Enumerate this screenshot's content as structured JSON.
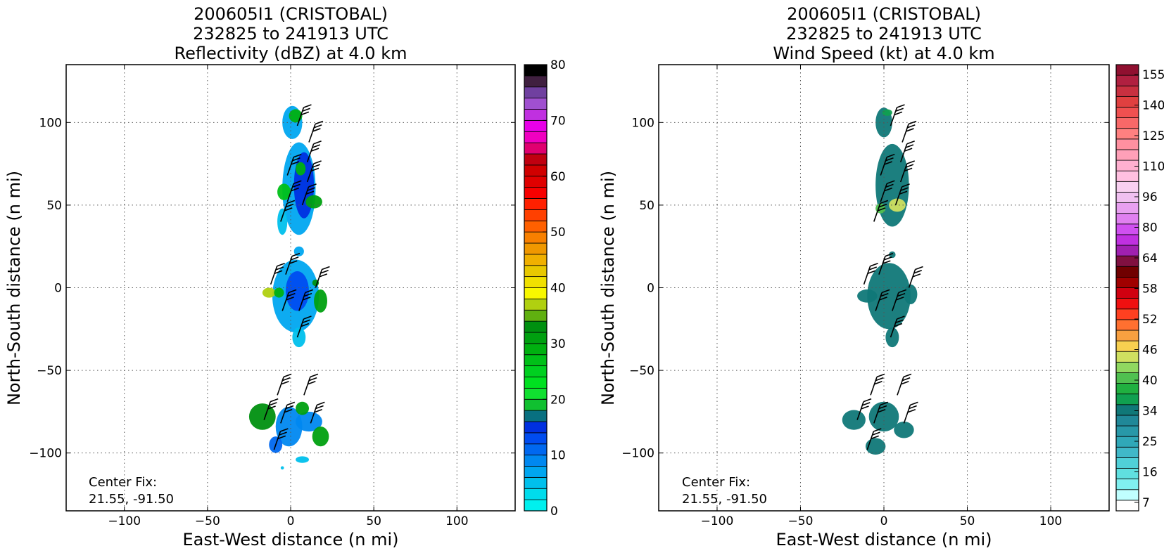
{
  "chart_data": [
    {
      "type": "heatmap",
      "title_lines": [
        "200605I1 (CRISTOBAL)",
        "232825 to 241913 UTC",
        "Reflectivity (dBZ) at 4.0 km"
      ],
      "xlabel": "East-West distance (n mi)",
      "ylabel": "North-South distance (n mi)",
      "xlim": [
        -135,
        135
      ],
      "ylim": [
        -135,
        135
      ],
      "xticks": [
        "−100",
        "−50",
        "0",
        "50",
        "100"
      ],
      "yticks": [
        "100",
        "50",
        "0",
        "−50",
        "−100"
      ],
      "grid": true,
      "annotation_lines": [
        "Center Fix:",
        "21.55, -91.50"
      ],
      "colorbar": {
        "ticks": [
          "80",
          "70",
          "60",
          "50",
          "40",
          "30",
          "20",
          "10",
          "0"
        ],
        "tick_values": [
          80,
          70,
          60,
          50,
          40,
          30,
          20,
          10,
          0
        ],
        "range": [
          0,
          80
        ],
        "colors": [
          "#00f0ee",
          "#00dcec",
          "#00c0ec",
          "#00a6f0",
          "#0088f0",
          "#0068f0",
          "#004cf0",
          "#0030e0",
          "#087080",
          "#10c030",
          "#10e030",
          "#00e020",
          "#00d020",
          "#00c018",
          "#00b010",
          "#00a010",
          "#009010",
          "#60b010",
          "#b0d010",
          "#f8f800",
          "#f0e000",
          "#e8c800",
          "#f0b000",
          "#f09800",
          "#f88000",
          "#ff6000",
          "#ff4000",
          "#ff2000",
          "#f80000",
          "#e00000",
          "#d00000",
          "#c00010",
          "#e00070",
          "#f000c0",
          "#e800e8",
          "#c030e0",
          "#a050d0",
          "#7040a0",
          "#402040",
          "#000000"
        ]
      },
      "echo_cells": [
        {
          "x": 1,
          "y": 100,
          "rx": 6,
          "ry": 10,
          "level": 3
        },
        {
          "x": 3,
          "y": 104,
          "rx": 4,
          "ry": 4,
          "level": 14
        },
        {
          "x": 5,
          "y": 60,
          "rx": 10,
          "ry": 28,
          "level": 3
        },
        {
          "x": 8,
          "y": 62,
          "rx": 6,
          "ry": 20,
          "level": 7
        },
        {
          "x": 14,
          "y": 52,
          "rx": 5,
          "ry": 4,
          "level": 15
        },
        {
          "x": -4,
          "y": 58,
          "rx": 4,
          "ry": 5,
          "level": 13
        },
        {
          "x": 6,
          "y": 72,
          "rx": 3,
          "ry": 4,
          "level": 14
        },
        {
          "x": -5,
          "y": 40,
          "rx": 3,
          "ry": 8,
          "level": 2
        },
        {
          "x": 5,
          "y": 22,
          "rx": 3,
          "ry": 3,
          "level": 3
        },
        {
          "x": 3,
          "y": -5,
          "rx": 14,
          "ry": 22,
          "level": 3
        },
        {
          "x": 4,
          "y": -2,
          "rx": 7,
          "ry": 12,
          "level": 6
        },
        {
          "x": -13,
          "y": -3,
          "rx": 4,
          "ry": 3,
          "level": 18
        },
        {
          "x": -7,
          "y": -3,
          "rx": 3,
          "ry": 3,
          "level": 14
        },
        {
          "x": 18,
          "y": -8,
          "rx": 4,
          "ry": 7,
          "level": 15
        },
        {
          "x": 15,
          "y": 3,
          "rx": 2,
          "ry": 2,
          "level": 16
        },
        {
          "x": 5,
          "y": -30,
          "rx": 4,
          "ry": 6,
          "level": 2
        },
        {
          "x": -1,
          "y": -84,
          "rx": 8,
          "ry": 12,
          "level": 4
        },
        {
          "x": -17,
          "y": -78,
          "rx": 8,
          "ry": 8,
          "level": 16
        },
        {
          "x": 11,
          "y": -81,
          "rx": 8,
          "ry": 6,
          "level": 4
        },
        {
          "x": 18,
          "y": -90,
          "rx": 5,
          "ry": 6,
          "level": 15
        },
        {
          "x": -9,
          "y": -95,
          "rx": 4,
          "ry": 5,
          "level": 5
        },
        {
          "x": 7,
          "y": -104,
          "rx": 4,
          "ry": 2,
          "level": 2
        },
        {
          "x": -5,
          "y": -109,
          "rx": 1,
          "ry": 1,
          "level": 2
        },
        {
          "x": 7,
          "y": -73,
          "rx": 4,
          "ry": 4,
          "level": 15
        }
      ]
    },
    {
      "type": "heatmap",
      "title_lines": [
        "200605I1 (CRISTOBAL)",
        "232825 to 241913 UTC",
        "Wind Speed (kt) at 4.0 km"
      ],
      "xlabel": "East-West distance (n mi)",
      "ylabel": "North-South distance (n mi)",
      "xlim": [
        -135,
        135
      ],
      "ylim": [
        -135,
        135
      ],
      "xticks": [
        "−100",
        "−50",
        "0",
        "50",
        "100"
      ],
      "yticks": [
        "100",
        "50",
        "0",
        "−50",
        "−100"
      ],
      "grid": true,
      "annotation_lines": [
        "Center Fix:",
        "21.55, -91.50"
      ],
      "colorbar": {
        "ticks": [
          "155",
          "140",
          "125",
          "110",
          "96",
          "80",
          "64",
          "58",
          "52",
          "46",
          "40",
          "34",
          "25",
          "16",
          "7"
        ],
        "colors": [
          "#ffffff",
          "#c0ffff",
          "#80f0f0",
          "#60e0e0",
          "#50d0d8",
          "#40b8c8",
          "#30a8b8",
          "#2898a8",
          "#208898",
          "#107878",
          "#10a050",
          "#20b040",
          "#50c050",
          "#90d860",
          "#d0e060",
          "#f8d050",
          "#f8a040",
          "#ff7030",
          "#ff4020",
          "#f01010",
          "#d00010",
          "#a00000",
          "#700000",
          "#801040",
          "#a020b0",
          "#c030e0",
          "#d050f0",
          "#e080f0",
          "#e8a0f0",
          "#f0c0f0",
          "#f8d0f0",
          "#ffc0e0",
          "#ffb0d0",
          "#ffa0b8",
          "#ff90a0",
          "#ff8080",
          "#f86868",
          "#f05050",
          "#e04040",
          "#c83040",
          "#b02040",
          "#901030"
        ]
      },
      "echo_cells": [
        {
          "x": 0,
          "y": 100,
          "rx": 5,
          "ry": 9,
          "level": 9
        },
        {
          "x": 2,
          "y": 106,
          "rx": 3,
          "ry": 2,
          "level": 10
        },
        {
          "x": 5,
          "y": 62,
          "rx": 10,
          "ry": 25,
          "level": 9
        },
        {
          "x": 8,
          "y": 50,
          "rx": 5,
          "ry": 4,
          "level": 14
        },
        {
          "x": -2,
          "y": 48,
          "rx": 3,
          "ry": 3,
          "level": 12
        },
        {
          "x": 5,
          "y": 20,
          "rx": 2,
          "ry": 2,
          "level": 9
        },
        {
          "x": 3,
          "y": -5,
          "rx": 13,
          "ry": 20,
          "level": 9
        },
        {
          "x": -10,
          "y": -5,
          "rx": 6,
          "ry": 4,
          "level": 9
        },
        {
          "x": 16,
          "y": -4,
          "rx": 4,
          "ry": 6,
          "level": 9
        },
        {
          "x": 5,
          "y": -30,
          "rx": 4,
          "ry": 6,
          "level": 9
        },
        {
          "x": 0,
          "y": -78,
          "rx": 9,
          "ry": 9,
          "level": 9
        },
        {
          "x": -18,
          "y": -80,
          "rx": 7,
          "ry": 6,
          "level": 9
        },
        {
          "x": 12,
          "y": -86,
          "rx": 6,
          "ry": 5,
          "level": 9
        },
        {
          "x": -5,
          "y": -96,
          "rx": 6,
          "ry": 5,
          "level": 9
        }
      ]
    }
  ],
  "wind_barbs": [
    {
      "x": 4,
      "y": 98
    },
    {
      "x": 11,
      "y": 88
    },
    {
      "x": 10,
      "y": 76
    },
    {
      "x": -2,
      "y": 68
    },
    {
      "x": 10,
      "y": 64
    },
    {
      "x": -2,
      "y": 52
    },
    {
      "x": 7,
      "y": 50
    },
    {
      "x": -6,
      "y": 40
    },
    {
      "x": -12,
      "y": 2
    },
    {
      "x": -3,
      "y": 8
    },
    {
      "x": 15,
      "y": 0
    },
    {
      "x": -5,
      "y": -14
    },
    {
      "x": 5,
      "y": -14
    },
    {
      "x": 4,
      "y": -30
    },
    {
      "x": -8,
      "y": -65
    },
    {
      "x": 8,
      "y": -65
    },
    {
      "x": -16,
      "y": -80
    },
    {
      "x": -6,
      "y": -82
    },
    {
      "x": 12,
      "y": -82
    },
    {
      "x": -10,
      "y": -98
    }
  ]
}
